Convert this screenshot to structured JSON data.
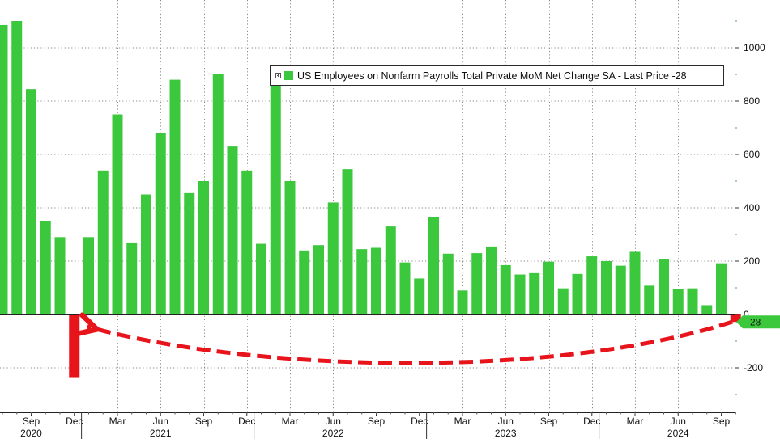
{
  "chart_data": {
    "type": "bar",
    "title": "",
    "xlabel": "",
    "ylabel": "",
    "ylim": [
      -370,
      1180
    ],
    "yticks": [
      -200,
      0,
      200,
      400,
      600,
      800,
      1000
    ],
    "grid": true,
    "legend_position": "top-right",
    "series": [
      {
        "name": "US Employees on Nonfarm Payrolls Total Private MoM Net Change SA - Last Price -28",
        "color": "#3cc83c",
        "negative_color": "#e8141c",
        "x": [
          "2020-07",
          "2020-08",
          "2020-09",
          "2020-10",
          "2020-11",
          "2020-12",
          "2021-01",
          "2021-02",
          "2021-03",
          "2021-04",
          "2021-05",
          "2021-06",
          "2021-07",
          "2021-08",
          "2021-09",
          "2021-10",
          "2021-11",
          "2021-12",
          "2022-01",
          "2022-02",
          "2022-03",
          "2022-04",
          "2022-05",
          "2022-06",
          "2022-07",
          "2022-08",
          "2022-09",
          "2022-10",
          "2022-11",
          "2022-12",
          "2023-01",
          "2023-02",
          "2023-03",
          "2023-04",
          "2023-05",
          "2023-06",
          "2023-07",
          "2023-08",
          "2023-09",
          "2023-10",
          "2023-11",
          "2023-12",
          "2024-01",
          "2024-02",
          "2024-03",
          "2024-04",
          "2024-05",
          "2024-06",
          "2024-07",
          "2024-08",
          "2024-09",
          "2024-10"
        ],
        "values": [
          1085,
          1100,
          845,
          350,
          290,
          -235,
          290,
          540,
          750,
          270,
          450,
          680,
          880,
          455,
          500,
          900,
          630,
          540,
          265,
          870,
          500,
          240,
          260,
          420,
          545,
          245,
          250,
          330,
          195,
          135,
          365,
          228,
          90,
          230,
          255,
          185,
          150,
          155,
          198,
          98,
          152,
          218,
          200,
          183,
          235,
          108,
          208,
          97,
          98,
          35,
          192,
          -28
        ]
      }
    ],
    "last_price_label": "-28",
    "x_month_ticks": [
      {
        "label": "Sep",
        "x": "2020-09"
      },
      {
        "label": "Dec",
        "x": "2020-12"
      },
      {
        "label": "Mar",
        "x": "2021-03"
      },
      {
        "label": "Jun",
        "x": "2021-06"
      },
      {
        "label": "Sep",
        "x": "2021-09"
      },
      {
        "label": "Dec",
        "x": "2021-12"
      },
      {
        "label": "Mar",
        "x": "2022-03"
      },
      {
        "label": "Jun",
        "x": "2022-06"
      },
      {
        "label": "Sep",
        "x": "2022-09"
      },
      {
        "label": "Dec",
        "x": "2022-12"
      },
      {
        "label": "Mar",
        "x": "2023-03"
      },
      {
        "label": "Jun",
        "x": "2023-06"
      },
      {
        "label": "Sep",
        "x": "2023-09"
      },
      {
        "label": "Dec",
        "x": "2023-12"
      },
      {
        "label": "Mar",
        "x": "2024-03"
      },
      {
        "label": "Jun",
        "x": "2024-06"
      },
      {
        "label": "Sep",
        "x": "2024-09"
      }
    ],
    "x_year_ticks": [
      {
        "label": "2020",
        "x": "2020-09"
      },
      {
        "label": "2021",
        "x": "2021-06"
      },
      {
        "label": "2022",
        "x": "2022-06"
      },
      {
        "label": "2023",
        "x": "2023-06"
      },
      {
        "label": "2024",
        "x": "2024-06"
      }
    ],
    "annotations": [
      {
        "type": "dashed-arrow",
        "color": "#e8141c",
        "from": "2024-10",
        "to": "2020-12"
      }
    ]
  }
}
